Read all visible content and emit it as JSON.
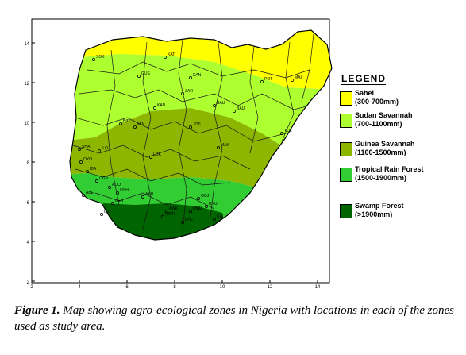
{
  "map": {
    "y_ticks": [
      "14",
      "12",
      "10",
      "8",
      "6",
      "4",
      "2"
    ],
    "x_ticks": [
      "2",
      "4",
      "6",
      "8",
      "10",
      "12",
      "14"
    ],
    "places": [
      "SOK",
      "KAT",
      "GUS",
      "KAN",
      "POT",
      "MAI",
      "ZAR",
      "KAD",
      "BAU",
      "BAU",
      "MIN",
      "BID",
      "JOS",
      "YOL",
      "LOK",
      "MAK",
      "SHA",
      "ILO",
      "OYO",
      "IBA",
      "OGB",
      "ADO",
      "OSH",
      "BEN",
      "OGJ",
      "ENU",
      "OWR",
      "PHC",
      "CAL",
      "UMU",
      "AWK",
      "ABE",
      "AKU",
      "IKO"
    ]
  },
  "legend": {
    "title": "LEGEND",
    "items": [
      {
        "name": "Sahel",
        "range": "(300-700mm)",
        "color": "#ffff00"
      },
      {
        "name": "Sudan Savannah",
        "range": "(700-1100mm)",
        "color": "#adff2f"
      },
      {
        "name": "Guinea Savannah",
        "range": "(1100-1500mm)",
        "color": "#8db600"
      },
      {
        "name": "Tropical Rain Forest",
        "range": "(1500-1900mm)",
        "color": "#32cd32"
      },
      {
        "name": "Swamp Forest",
        "range": "(>1900mm)",
        "color": "#006400"
      }
    ]
  },
  "caption": {
    "label": "Figure 1.",
    "text": "Map showing agro-ecological zones in Nigeria with locations in each of the zones used as study area."
  }
}
